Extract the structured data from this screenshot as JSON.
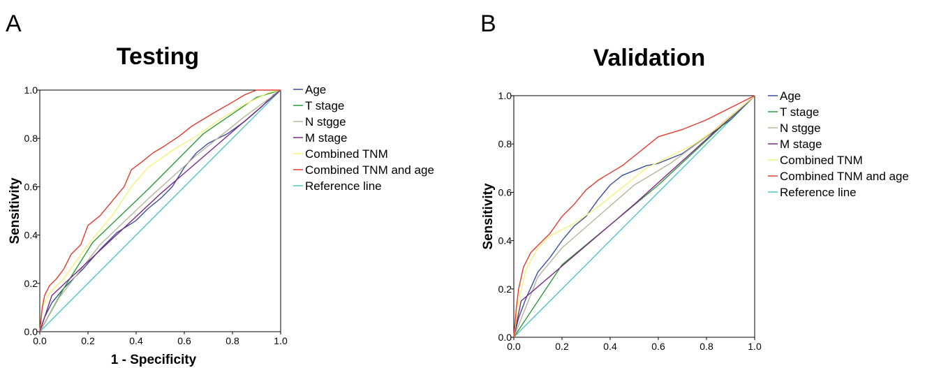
{
  "figure": {
    "panels": [
      {
        "letter": "A",
        "title": "Testing",
        "xlabel": "1 - Specificity",
        "ylabel": "Sensitivity"
      },
      {
        "letter": "B",
        "title": "Validation",
        "xlabel": "",
        "ylabel": "Sensitivity"
      }
    ]
  },
  "chart_data": [
    {
      "type": "line",
      "title": "Testing",
      "xlabel": "1 - Specificity",
      "ylabel": "Sensitivity",
      "xlim": [
        0,
        1
      ],
      "ylim": [
        0,
        1
      ],
      "xticks": [
        "0.0",
        "0.2",
        "0.4",
        "0.6",
        "0.8",
        "1.0"
      ],
      "yticks": [
        "0.0",
        "0.2",
        "0.4",
        "0.6",
        "0.8",
        "1.0"
      ],
      "grid": false,
      "legend_position": "right",
      "series": [
        {
          "name": "Age",
          "color": "#3a4fa0",
          "points": [
            [
              0,
              0
            ],
            [
              0.02,
              0.06
            ],
            [
              0.05,
              0.12
            ],
            [
              0.1,
              0.18
            ],
            [
              0.18,
              0.26
            ],
            [
              0.25,
              0.34
            ],
            [
              0.32,
              0.41
            ],
            [
              0.4,
              0.46
            ],
            [
              0.45,
              0.51
            ],
            [
              0.5,
              0.55
            ],
            [
              0.55,
              0.6
            ],
            [
              0.6,
              0.68
            ],
            [
              0.65,
              0.74
            ],
            [
              0.7,
              0.78
            ],
            [
              0.78,
              0.82
            ],
            [
              0.85,
              0.87
            ],
            [
              0.92,
              0.93
            ],
            [
              0.97,
              0.98
            ],
            [
              1,
              1
            ]
          ]
        },
        {
          "name": "T stage",
          "color": "#2e9a3a",
          "points": [
            [
              0,
              0
            ],
            [
              0.1,
              0.18
            ],
            [
              0.22,
              0.37
            ],
            [
              0.45,
              0.59
            ],
            [
              0.68,
              0.82
            ],
            [
              0.9,
              0.97
            ],
            [
              1,
              1
            ]
          ]
        },
        {
          "name": "N stgge",
          "color": "#b8b49a",
          "points": [
            [
              0,
              0
            ],
            [
              0.08,
              0.14
            ],
            [
              0.25,
              0.36
            ],
            [
              0.45,
              0.55
            ],
            [
              0.65,
              0.73
            ],
            [
              0.85,
              0.89
            ],
            [
              1,
              1
            ]
          ]
        },
        {
          "name": "M stage",
          "color": "#7b2a82",
          "points": [
            [
              0,
              0
            ],
            [
              0.05,
              0.15
            ],
            [
              0.5,
              0.57
            ],
            [
              1,
              1
            ]
          ]
        },
        {
          "name": "Combined TNM",
          "color": "#f2f27a",
          "points": [
            [
              0,
              0
            ],
            [
              0.01,
              0.1
            ],
            [
              0.04,
              0.16
            ],
            [
              0.1,
              0.22
            ],
            [
              0.2,
              0.36
            ],
            [
              0.3,
              0.48
            ],
            [
              0.38,
              0.6
            ],
            [
              0.45,
              0.68
            ],
            [
              0.55,
              0.75
            ],
            [
              0.65,
              0.81
            ],
            [
              0.75,
              0.88
            ],
            [
              0.85,
              0.94
            ],
            [
              0.95,
              0.99
            ],
            [
              1,
              1
            ]
          ]
        },
        {
          "name": "Combined TNM and age",
          "color": "#e23a2e",
          "points": [
            [
              0,
              0
            ],
            [
              0.01,
              0.1
            ],
            [
              0.02,
              0.15
            ],
            [
              0.04,
              0.19
            ],
            [
              0.07,
              0.22
            ],
            [
              0.1,
              0.26
            ],
            [
              0.13,
              0.32
            ],
            [
              0.17,
              0.36
            ],
            [
              0.2,
              0.44
            ],
            [
              0.25,
              0.48
            ],
            [
              0.3,
              0.54
            ],
            [
              0.35,
              0.6
            ],
            [
              0.38,
              0.67
            ],
            [
              0.42,
              0.7
            ],
            [
              0.47,
              0.74
            ],
            [
              0.52,
              0.77
            ],
            [
              0.58,
              0.81
            ],
            [
              0.63,
              0.85
            ],
            [
              0.68,
              0.88
            ],
            [
              0.73,
              0.91
            ],
            [
              0.8,
              0.95
            ],
            [
              0.85,
              0.98
            ],
            [
              0.9,
              1
            ],
            [
              1,
              1
            ]
          ]
        },
        {
          "name": "Reference line",
          "color": "#4fc4c8",
          "points": [
            [
              0,
              0
            ],
            [
              1,
              1
            ]
          ]
        }
      ]
    },
    {
      "type": "line",
      "title": "Validation",
      "xlabel": "",
      "ylabel": "Sensitivity",
      "xlim": [
        0,
        1
      ],
      "ylim": [
        0,
        1
      ],
      "xticks": [
        "0.0",
        "0.2",
        "0.4",
        "0.6",
        "0.8",
        "1.0"
      ],
      "yticks": [
        "0.0",
        "0.2",
        "0.4",
        "0.6",
        "0.8",
        "1.0"
      ],
      "grid": false,
      "legend_position": "right",
      "series": [
        {
          "name": "Age",
          "color": "#3a4fa0",
          "points": [
            [
              0,
              0
            ],
            [
              0.02,
              0.08
            ],
            [
              0.05,
              0.16
            ],
            [
              0.1,
              0.27
            ],
            [
              0.15,
              0.33
            ],
            [
              0.2,
              0.4
            ],
            [
              0.25,
              0.46
            ],
            [
              0.3,
              0.5
            ],
            [
              0.35,
              0.57
            ],
            [
              0.4,
              0.63
            ],
            [
              0.45,
              0.67
            ],
            [
              0.5,
              0.69
            ],
            [
              0.55,
              0.71
            ],
            [
              0.6,
              0.72
            ],
            [
              0.7,
              0.76
            ],
            [
              0.8,
              0.83
            ],
            [
              0.9,
              0.9
            ],
            [
              1,
              1
            ]
          ]
        },
        {
          "name": "T stage",
          "color": "#2e9a3a",
          "points": [
            [
              0,
              0
            ],
            [
              0.2,
              0.3
            ],
            [
              0.6,
              0.63
            ],
            [
              1,
              1
            ]
          ]
        },
        {
          "name": "N stgge",
          "color": "#b8b49a",
          "points": [
            [
              0,
              0
            ],
            [
              0.1,
              0.25
            ],
            [
              0.2,
              0.37
            ],
            [
              0.35,
              0.5
            ],
            [
              0.5,
              0.63
            ],
            [
              0.65,
              0.72
            ],
            [
              0.8,
              0.83
            ],
            [
              1,
              1
            ]
          ]
        },
        {
          "name": "M stage",
          "color": "#7b2a82",
          "points": [
            [
              0,
              0
            ],
            [
              0.03,
              0.15
            ],
            [
              0.5,
              0.55
            ],
            [
              1,
              1
            ]
          ]
        },
        {
          "name": "Combined TNM",
          "color": "#f2f27a",
          "points": [
            [
              0,
              0
            ],
            [
              0.02,
              0.15
            ],
            [
              0.05,
              0.28
            ],
            [
              0.1,
              0.37
            ],
            [
              0.15,
              0.42
            ],
            [
              0.25,
              0.47
            ],
            [
              0.35,
              0.54
            ],
            [
              0.45,
              0.62
            ],
            [
              0.55,
              0.7
            ],
            [
              0.65,
              0.75
            ],
            [
              0.75,
              0.8
            ],
            [
              0.85,
              0.87
            ],
            [
              1,
              1
            ]
          ]
        },
        {
          "name": "Combined TNM and age",
          "color": "#e23a2e",
          "points": [
            [
              0,
              0
            ],
            [
              0.01,
              0.12
            ],
            [
              0.02,
              0.2
            ],
            [
              0.04,
              0.29
            ],
            [
              0.07,
              0.35
            ],
            [
              0.1,
              0.38
            ],
            [
              0.15,
              0.43
            ],
            [
              0.2,
              0.5
            ],
            [
              0.25,
              0.55
            ],
            [
              0.3,
              0.61
            ],
            [
              0.35,
              0.65
            ],
            [
              0.4,
              0.68
            ],
            [
              0.45,
              0.71
            ],
            [
              0.5,
              0.75
            ],
            [
              0.55,
              0.79
            ],
            [
              0.6,
              0.83
            ],
            [
              0.7,
              0.86
            ],
            [
              0.8,
              0.9
            ],
            [
              0.9,
              0.95
            ],
            [
              1,
              1
            ]
          ]
        },
        {
          "name": "Reference line",
          "color": "#4fc4c8",
          "points": [
            [
              0,
              0
            ],
            [
              1,
              1
            ]
          ]
        }
      ]
    }
  ]
}
